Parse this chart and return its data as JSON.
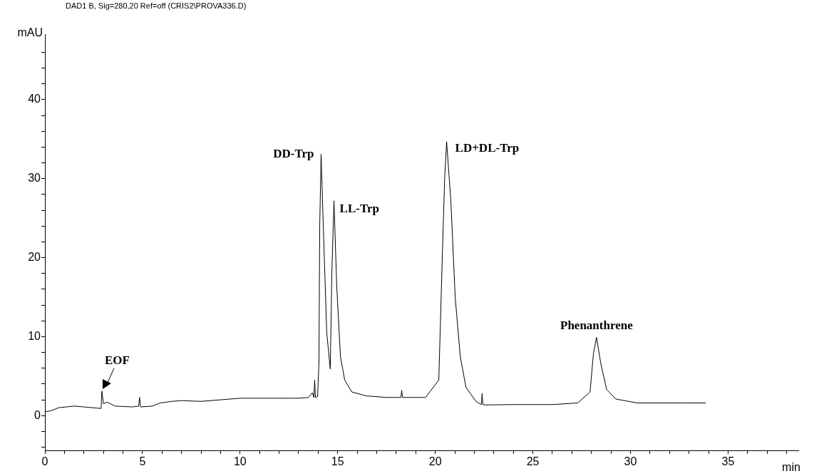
{
  "chart_data": {
    "type": "line",
    "title": "DAD1 B, Sig=280,20 Ref=off (CRIS2\\PROVA336.D)",
    "xlabel": "min",
    "ylabel": "mAU",
    "series": [
      {
        "color": "#000000",
        "x": [
          0,
          0.3,
          0.7,
          1.5,
          2.0,
          2.88,
          2.92,
          3.0,
          3.2,
          3.6,
          4.5,
          4.8,
          4.85,
          4.9,
          5.5,
          5.9,
          6.5,
          7.0,
          8.0,
          9.0,
          10.0,
          11.0,
          12.0,
          13.0,
          13.5,
          13.7,
          13.78,
          13.82,
          13.86,
          13.97,
          14.04,
          14.08,
          14.15,
          14.3,
          14.44,
          14.62,
          14.7,
          14.81,
          14.95,
          15.14,
          15.36,
          15.72,
          16.45,
          17.5,
          18.24,
          18.28,
          18.32,
          19.5,
          20.18,
          20.37,
          20.48,
          20.58,
          20.8,
          21.02,
          21.28,
          21.57,
          22.08,
          22.36,
          22.4,
          22.44,
          22.56,
          24.0,
          26.0,
          27.3,
          27.93,
          28.1,
          28.26,
          28.48,
          28.78,
          29.25,
          30.35,
          32.8,
          33.86
        ],
        "values": [
          0.5,
          0.6,
          1.0,
          1.2,
          1.1,
          0.9,
          3.1,
          1.5,
          1.7,
          1.2,
          1.1,
          1.2,
          2.3,
          1.1,
          1.2,
          1.6,
          1.8,
          1.9,
          1.8,
          2.0,
          2.2,
          2.2,
          2.2,
          2.2,
          2.3,
          2.9,
          2.3,
          4.5,
          2.3,
          2.4,
          6.6,
          24,
          33.1,
          21,
          10.5,
          5.9,
          18,
          27.2,
          16.5,
          7.5,
          4.5,
          3.0,
          2.5,
          2.3,
          2.3,
          3.2,
          2.3,
          2.3,
          4.5,
          21,
          30,
          34.7,
          27.1,
          15,
          7.5,
          3.6,
          1.8,
          1.4,
          2.8,
          1.4,
          1.35,
          1.4,
          1.4,
          1.6,
          3.0,
          7.8,
          9.9,
          6.6,
          3.3,
          2.1,
          1.6,
          1.6,
          1.6
        ]
      }
    ],
    "xlim": [
      0,
      38.6
    ],
    "ylim": [
      -4.4,
      48.3
    ],
    "xticks": [
      0,
      {
        "value": 1,
        "label": null
      },
      {
        "value": 2,
        "label": null
      },
      {
        "value": 3,
        "label": null
      },
      {
        "value": 4,
        "label": null
      },
      5,
      {
        "value": 6,
        "label": null
      },
      {
        "value": 7,
        "label": null
      },
      {
        "value": 8,
        "label": null
      },
      {
        "value": 9,
        "label": null
      },
      10,
      {
        "value": 11,
        "label": null
      },
      {
        "value": 12,
        "label": null
      },
      {
        "value": 13,
        "label": null
      },
      {
        "value": 14,
        "label": null
      },
      15,
      {
        "value": 16,
        "label": null
      },
      {
        "value": 17,
        "label": null
      },
      {
        "value": 18,
        "label": null
      },
      {
        "value": 19,
        "label": null
      },
      20,
      {
        "value": 21,
        "label": null
      },
      {
        "value": 22,
        "label": null
      },
      {
        "value": 23,
        "label": null
      },
      {
        "value": 24,
        "label": null
      },
      25,
      {
        "value": 26,
        "label": null
      },
      {
        "value": 27,
        "label": null
      },
      {
        "value": 28,
        "label": null
      },
      {
        "value": 29,
        "label": null
      },
      30,
      {
        "value": 31,
        "label": null
      },
      {
        "value": 32,
        "label": null
      },
      {
        "value": 33,
        "label": null
      },
      {
        "value": 34,
        "label": null
      },
      35,
      {
        "value": 36,
        "label": null
      },
      {
        "value": 37,
        "label": null
      },
      {
        "value": 38,
        "label": null
      }
    ],
    "yticks": [
      {
        "value": -4,
        "label": null
      },
      {
        "value": -2,
        "label": null
      },
      0,
      {
        "value": 2,
        "label": null
      },
      {
        "value": 4,
        "label": null
      },
      {
        "value": 6,
        "label": null
      },
      {
        "value": 8,
        "label": null
      },
      10,
      {
        "value": 12,
        "label": null
      },
      {
        "value": 14,
        "label": null
      },
      {
        "value": 16,
        "label": null
      },
      {
        "value": 18,
        "label": null
      },
      20,
      {
        "value": 22,
        "label": null
      },
      {
        "value": 24,
        "label": null
      },
      {
        "value": 26,
        "label": null
      },
      {
        "value": 28,
        "label": null
      },
      30,
      {
        "value": 32,
        "label": null
      },
      {
        "value": 34,
        "label": null
      },
      {
        "value": 36,
        "label": null
      },
      {
        "value": 38,
        "label": null
      },
      40,
      {
        "value": 42,
        "label": null
      },
      {
        "value": 44,
        "label": null
      },
      {
        "value": 46,
        "label": null
      }
    ],
    "marker": "none",
    "legend": false,
    "annotations": [
      {
        "text": "EOF",
        "x": 2.92,
        "y": 3.1
      },
      {
        "text": "DD-Trp",
        "x": 14.15,
        "y": 33.1
      },
      {
        "text": "LL-Trp",
        "x": 14.81,
        "y": 27.2
      },
      {
        "text": "LD+DL-Trp",
        "x": 20.58,
        "y": 34.7
      },
      {
        "text": "Phenanthrene",
        "x": 28.26,
        "y": 9.9
      }
    ]
  }
}
